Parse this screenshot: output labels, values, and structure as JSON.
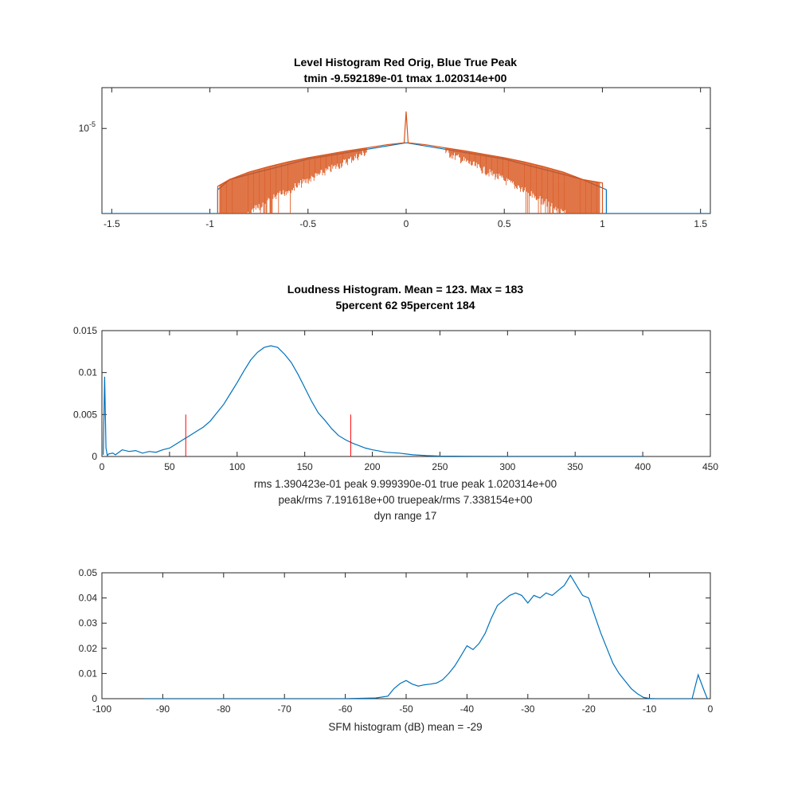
{
  "chart_data": [
    {
      "type": "line",
      "title": "Level Histogram Red Orig, Blue True Peak",
      "subtitle": "tmin -9.592189e-01 tmax 1.020314e+00",
      "xlim": [
        -1.55,
        1.55
      ],
      "xticks": [
        -1.5,
        -1,
        -0.5,
        0,
        0.5,
        1,
        1.5
      ],
      "xtick_labels": [
        "-1.5",
        "-1",
        "-0.5",
        "0",
        "0.5",
        "1",
        "1.5"
      ],
      "yscale": "log",
      "yticks": [
        1e-05
      ],
      "ytick_labels": [
        "10-5"
      ],
      "ytick_base": "10",
      "ytick_exp": "-5",
      "ylim_log10": [
        -7.5,
        -3.8
      ],
      "series": [
        {
          "color": "#0072bd",
          "x": [
            -1.55,
            -0.96,
            -0.96,
            -0.9,
            -0.5,
            0,
            0.5,
            0.9,
            1.02,
            1.02,
            1.55
          ],
          "log10_y": [
            -7.5,
            -7.5,
            -6.8,
            -6.5,
            -5.9,
            -5.42,
            -5.9,
            -6.5,
            -6.8,
            -7.5,
            -7.5
          ]
        },
        {
          "color": "#d95319",
          "x": [
            -0.96,
            -0.96,
            -0.9,
            -0.8,
            -0.7,
            -0.6,
            -0.5,
            -0.4,
            -0.3,
            -0.2,
            -0.1,
            -0.01,
            0,
            0.01,
            0.1,
            0.2,
            0.3,
            0.4,
            0.5,
            0.6,
            0.7,
            0.8,
            0.9,
            1.0,
            1.0
          ],
          "log10_y": [
            -7.5,
            -6.7,
            -6.5,
            -6.28,
            -6.12,
            -5.98,
            -5.86,
            -5.76,
            -5.66,
            -5.57,
            -5.48,
            -5.42,
            -4.5,
            -5.42,
            -5.48,
            -5.57,
            -5.66,
            -5.76,
            -5.86,
            -5.98,
            -6.12,
            -6.28,
            -6.5,
            -6.6,
            -7.5
          ]
        }
      ]
    },
    {
      "type": "line",
      "title": "Loudness Histogram. Mean = 123. Max = 183",
      "subtitle": "5percent 62 95percent 184",
      "xlim": [
        0,
        450
      ],
      "xticks": [
        0,
        50,
        100,
        150,
        200,
        250,
        300,
        350,
        400,
        450
      ],
      "ylim": [
        0,
        0.015
      ],
      "yticks": [
        0,
        0.005,
        0.01,
        0.015
      ],
      "ytick_labels": [
        "0",
        "0.005",
        "0.01",
        "0.015"
      ],
      "annotations": [
        "rms 1.390423e-01 peak 9.999390e-01 true peak 1.020314e+00",
        "peak/rms 7.191618e+00 truepeak/rms 7.338154e+00",
        "dyn range 17"
      ],
      "markers": [
        {
          "x": 62,
          "y_top": 0.005,
          "color": "#ff0000"
        },
        {
          "x": 184,
          "y_top": 0.005,
          "color": "#ff0000"
        }
      ],
      "series": [
        {
          "color": "#0072bd",
          "x": [
            1,
            2,
            3,
            4,
            5,
            8,
            10,
            15,
            20,
            25,
            30,
            35,
            40,
            45,
            50,
            55,
            60,
            65,
            70,
            75,
            80,
            85,
            90,
            95,
            100,
            105,
            110,
            115,
            120,
            125,
            130,
            135,
            140,
            145,
            150,
            155,
            160,
            165,
            170,
            175,
            180,
            185,
            190,
            195,
            200,
            210,
            220,
            230,
            240,
            250,
            270,
            300,
            330,
            360,
            400
          ],
          "values": [
            0.0002,
            0.0095,
            0.001,
            0.0001,
            0.0003,
            0.0004,
            0.0002,
            0.0008,
            0.0006,
            0.0007,
            0.0004,
            0.0006,
            0.0005,
            0.0008,
            0.001,
            0.0015,
            0.002,
            0.0025,
            0.003,
            0.0035,
            0.0042,
            0.0052,
            0.0062,
            0.0075,
            0.0088,
            0.0102,
            0.0115,
            0.0124,
            0.013,
            0.0132,
            0.013,
            0.0122,
            0.0112,
            0.0098,
            0.0082,
            0.0066,
            0.0052,
            0.0043,
            0.0033,
            0.0025,
            0.002,
            0.0016,
            0.0013,
            0.001,
            0.0008,
            0.0005,
            0.0004,
            0.0002,
            0.0001,
            5e-05,
            3e-05,
            2e-05,
            2e-05,
            1e-05,
            1e-05
          ]
        }
      ]
    },
    {
      "type": "line",
      "xlabel": "SFM histogram (dB) mean = -29",
      "xlim": [
        -100,
        0
      ],
      "xticks": [
        -100,
        -90,
        -80,
        -70,
        -60,
        -50,
        -40,
        -30,
        -20,
        -10,
        0
      ],
      "ylim": [
        0,
        0.05
      ],
      "yticks": [
        0,
        0.01,
        0.02,
        0.03,
        0.04,
        0.05
      ],
      "ytick_labels": [
        "0",
        "0.01",
        "0.02",
        "0.03",
        "0.04",
        "0.05"
      ],
      "series": [
        {
          "color": "#0072bd",
          "x": [
            -93,
            -80,
            -70,
            -60,
            -55,
            -53,
            -52,
            -51,
            -50,
            -49,
            -48,
            -47,
            -46,
            -45,
            -44,
            -43,
            -42,
            -41,
            -40,
            -39,
            -38,
            -37,
            -36,
            -35,
            -34,
            -33,
            -32,
            -31,
            -30,
            -29,
            -28,
            -27,
            -26,
            -25,
            -24,
            -23,
            -22,
            -21,
            -20,
            -19,
            -18,
            -17,
            -16,
            -15,
            -14,
            -13,
            -12,
            -11,
            -10,
            -9,
            -8,
            -5,
            -3,
            -2,
            -1,
            -0.5
          ],
          "values": [
            0,
            0,
            0,
            0,
            0.0003,
            0.001,
            0.004,
            0.006,
            0.0072,
            0.0058,
            0.005,
            0.0055,
            0.0058,
            0.0062,
            0.0075,
            0.01,
            0.013,
            0.017,
            0.021,
            0.0195,
            0.022,
            0.026,
            0.032,
            0.037,
            0.039,
            0.041,
            0.042,
            0.041,
            0.038,
            0.041,
            0.04,
            0.042,
            0.041,
            0.043,
            0.045,
            0.049,
            0.045,
            0.041,
            0.04,
            0.033,
            0.026,
            0.02,
            0.014,
            0.01,
            0.007,
            0.004,
            0.002,
            0.0005,
            0.0001,
            0,
            0,
            0,
            0,
            0.0095,
            0.003,
            0
          ]
        }
      ]
    }
  ]
}
